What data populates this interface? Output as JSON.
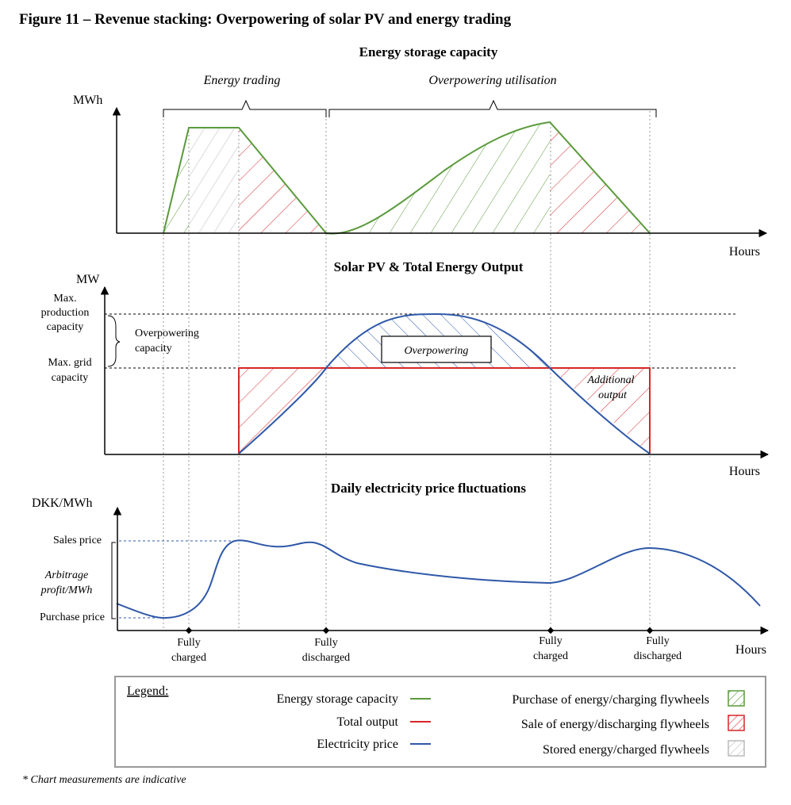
{
  "figure_title": "Figure 11 – Revenue stacking: Overpowering of solar PV and energy trading",
  "footnote": "* Chart measurements are indicative",
  "panel1": {
    "title": "Energy storage capacity",
    "y_unit": "MWh",
    "x_label": "Hours",
    "phase_energy_trading": "Energy trading",
    "phase_overpowering": "Overpowering utilisation"
  },
  "panel2": {
    "title": "Solar PV & Total Energy Output",
    "y_unit": "MW",
    "x_label": "Hours",
    "max_production_l1": "Max.",
    "max_production_l2": "production",
    "max_production_l3": "capacity",
    "max_grid_l1": "Max. grid",
    "max_grid_l2": "capacity",
    "overpowering_capacity_l1": "Overpowering",
    "overpowering_capacity_l2": "capacity",
    "overpowering_box": "Overpowering",
    "additional_output_l1": "Additional",
    "additional_output_l2": "output"
  },
  "panel3": {
    "title": "Daily electricity price fluctuations",
    "y_unit": "DKK/MWh",
    "x_label": "Hours",
    "sales_price": "Sales price",
    "purchase_price": "Purchase price",
    "arbitrage_l1": "Arbitrage",
    "arbitrage_l2": "profit/MWh",
    "events": [
      {
        "l1": "Fully",
        "l2": "charged"
      },
      {
        "l1": "Fully",
        "l2": "discharged"
      },
      {
        "l1": "Fully",
        "l2": "charged"
      },
      {
        "l1": "Fully",
        "l2": "discharged"
      }
    ]
  },
  "legend": {
    "title": "Legend:",
    "lines": [
      {
        "label": "Energy  storage capacity",
        "color": "#5a9a3c"
      },
      {
        "label": "Total output",
        "color": "#d62728"
      },
      {
        "label": "Electricity price",
        "color": "#2f58a8"
      }
    ],
    "fills": [
      {
        "label": "Purchase of energy/charging  flywheels",
        "color": "#5a9a3c"
      },
      {
        "label": "Sale of energy/discharging  flywheels",
        "color": "#d62728"
      },
      {
        "label": "Stored energy/charged  flywheels",
        "color": "#b9b9b9"
      }
    ]
  },
  "colors": {
    "green": "#5a9a3c",
    "red": "#d62728",
    "blue": "#2f58a8",
    "gray": "#b9b9b9"
  }
}
